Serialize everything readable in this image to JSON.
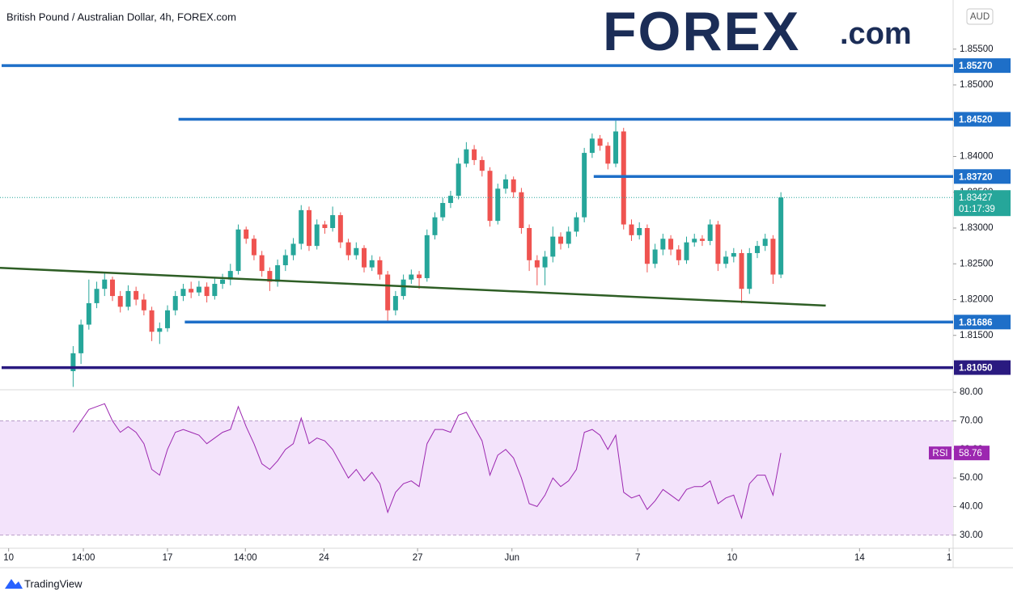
{
  "chart_data": [
    {
      "type": "candlestick",
      "title": "British Pound / Australian Dollar, 4h, FOREX.com",
      "currency": "AUD",
      "up_color": "#26a69a",
      "down_color": "#ef5350",
      "xlim": [
        -9.3,
        111.9
      ],
      "xticks": [
        {
          "value": -8.2,
          "label": "10"
        },
        {
          "value": 1.3,
          "label": "14:00"
        },
        {
          "value": 12,
          "label": "17"
        },
        {
          "value": 21.9,
          "label": "14:00"
        },
        {
          "value": 31.9,
          "label": "24"
        },
        {
          "value": 43.8,
          "label": "27"
        },
        {
          "value": 55.8,
          "label": "Jun"
        },
        {
          "value": 71.8,
          "label": "7"
        },
        {
          "value": 83.8,
          "label": "10"
        },
        {
          "value": 100,
          "label": "14"
        },
        {
          "value": 111.4,
          "label": "1"
        }
      ],
      "ylim": [
        1.8074,
        1.8613
      ],
      "yticks": [
        {
          "value": 1.815,
          "label": "1.81500"
        },
        {
          "value": 1.82,
          "label": "1.82000"
        },
        {
          "value": 1.825,
          "label": "1.82500"
        },
        {
          "value": 1.83,
          "label": "1.83000"
        },
        {
          "value": 1.835,
          "label": "1.83500"
        },
        {
          "value": 1.84,
          "label": "1.84000"
        },
        {
          "value": 1.845,
          "label": "1.84500"
        },
        {
          "value": 1.85,
          "label": "1.85000"
        },
        {
          "value": 1.855,
          "label": "1.85500"
        }
      ],
      "candles": [
        [
          1.81,
          1.8135,
          1.8078,
          1.8125
        ],
        [
          1.8125,
          1.8172,
          1.811,
          1.8165
        ],
        [
          1.8165,
          1.8228,
          1.8158,
          1.8195
        ],
        [
          1.8195,
          1.8225,
          1.8188,
          1.8215
        ],
        [
          1.8215,
          1.8238,
          1.8205,
          1.8228
        ],
        [
          1.8228,
          1.8232,
          1.8198,
          1.8205
        ],
        [
          1.8205,
          1.8212,
          1.8182,
          1.819
        ],
        [
          1.819,
          1.822,
          1.8185,
          1.8212
        ],
        [
          1.8212,
          1.8218,
          1.8192,
          1.82
        ],
        [
          1.82,
          1.8208,
          1.8178,
          1.8185
        ],
        [
          1.8185,
          1.819,
          1.8142,
          1.8155
        ],
        [
          1.8155,
          1.8168,
          1.8138,
          1.816
        ],
        [
          1.816,
          1.8192,
          1.8155,
          1.8185
        ],
        [
          1.8185,
          1.8212,
          1.8178,
          1.8205
        ],
        [
          1.8205,
          1.8222,
          1.8198,
          1.8215
        ],
        [
          1.8215,
          1.8225,
          1.8202,
          1.821
        ],
        [
          1.821,
          1.8226,
          1.8205,
          1.8218
        ],
        [
          1.8218,
          1.8224,
          1.8196,
          1.8205
        ],
        [
          1.8205,
          1.823,
          1.82,
          1.8222
        ],
        [
          1.8222,
          1.8236,
          1.8215,
          1.8228
        ],
        [
          1.8228,
          1.825,
          1.822,
          1.824
        ],
        [
          1.824,
          1.8305,
          1.8235,
          1.8298
        ],
        [
          1.8298,
          1.8302,
          1.8278,
          1.8285
        ],
        [
          1.8285,
          1.829,
          1.8255,
          1.8262
        ],
        [
          1.8262,
          1.8268,
          1.8232,
          1.824
        ],
        [
          1.824,
          1.8245,
          1.8212,
          1.8225
        ],
        [
          1.8225,
          1.8256,
          1.8218,
          1.8248
        ],
        [
          1.8248,
          1.827,
          1.824,
          1.8262
        ],
        [
          1.8262,
          1.8286,
          1.8255,
          1.8278
        ],
        [
          1.8278,
          1.8332,
          1.827,
          1.8325
        ],
        [
          1.8325,
          1.833,
          1.8268,
          1.8275
        ],
        [
          1.8275,
          1.8312,
          1.827,
          1.8305
        ],
        [
          1.8305,
          1.831,
          1.8292,
          1.83
        ],
        [
          1.83,
          1.833,
          1.8295,
          1.8318
        ],
        [
          1.8318,
          1.8322,
          1.8272,
          1.828
        ],
        [
          1.828,
          1.8285,
          1.8255,
          1.8262
        ],
        [
          1.8262,
          1.828,
          1.8256,
          1.8272
        ],
        [
          1.8272,
          1.8276,
          1.8238,
          1.8245
        ],
        [
          1.8245,
          1.8262,
          1.824,
          1.8255
        ],
        [
          1.8255,
          1.826,
          1.8228,
          1.8235
        ],
        [
          1.8235,
          1.824,
          1.817,
          1.8185
        ],
        [
          1.8185,
          1.8212,
          1.8178,
          1.8205
        ],
        [
          1.8205,
          1.8235,
          1.82,
          1.8228
        ],
        [
          1.8228,
          1.8242,
          1.8222,
          1.8235
        ],
        [
          1.8235,
          1.824,
          1.8215,
          1.823
        ],
        [
          1.823,
          1.8298,
          1.8225,
          1.829
        ],
        [
          1.829,
          1.8322,
          1.8284,
          1.8315
        ],
        [
          1.8315,
          1.8342,
          1.831,
          1.8335
        ],
        [
          1.8335,
          1.8352,
          1.8328,
          1.8345
        ],
        [
          1.8345,
          1.8398,
          1.834,
          1.839
        ],
        [
          1.839,
          1.842,
          1.8385,
          1.841
        ],
        [
          1.841,
          1.8416,
          1.8388,
          1.8395
        ],
        [
          1.8395,
          1.84,
          1.8372,
          1.838
        ],
        [
          1.838,
          1.8385,
          1.8302,
          1.831
        ],
        [
          1.831,
          1.8362,
          1.8305,
          1.8355
        ],
        [
          1.8355,
          1.8375,
          1.8348,
          1.8368
        ],
        [
          1.8368,
          1.8372,
          1.8342,
          1.835
        ],
        [
          1.835,
          1.8356,
          1.8292,
          1.83
        ],
        [
          1.83,
          1.8305,
          1.824,
          1.8255
        ],
        [
          1.8255,
          1.8262,
          1.822,
          1.8245
        ],
        [
          1.8245,
          1.8268,
          1.822,
          1.826
        ],
        [
          1.826,
          1.8302,
          1.8252,
          1.8288
        ],
        [
          1.8288,
          1.8294,
          1.827,
          1.8278
        ],
        [
          1.8278,
          1.8302,
          1.8272,
          1.8295
        ],
        [
          1.8295,
          1.8322,
          1.8288,
          1.8315
        ],
        [
          1.8315,
          1.8412,
          1.8308,
          1.8405
        ],
        [
          1.8405,
          1.8432,
          1.8398,
          1.8425
        ],
        [
          1.8425,
          1.843,
          1.8408,
          1.8415
        ],
        [
          1.8415,
          1.842,
          1.8382,
          1.839
        ],
        [
          1.839,
          1.845,
          1.8385,
          1.8435
        ],
        [
          1.8435,
          1.844,
          1.8298,
          1.8305
        ],
        [
          1.8305,
          1.8312,
          1.8282,
          1.829
        ],
        [
          1.829,
          1.8308,
          1.8284,
          1.83
        ],
        [
          1.83,
          1.8305,
          1.8238,
          1.825
        ],
        [
          1.825,
          1.8278,
          1.8244,
          1.827
        ],
        [
          1.827,
          1.8292,
          1.8262,
          1.8285
        ],
        [
          1.8285,
          1.829,
          1.8262,
          1.827
        ],
        [
          1.827,
          1.8276,
          1.8248,
          1.8255
        ],
        [
          1.8255,
          1.8288,
          1.825,
          1.828
        ],
        [
          1.828,
          1.8292,
          1.8274,
          1.8285
        ],
        [
          1.8285,
          1.829,
          1.8275,
          1.8282
        ],
        [
          1.8282,
          1.8312,
          1.8276,
          1.8305
        ],
        [
          1.8305,
          1.831,
          1.824,
          1.825
        ],
        [
          1.825,
          1.8268,
          1.8244,
          1.826
        ],
        [
          1.826,
          1.8272,
          1.8252,
          1.8265
        ],
        [
          1.8265,
          1.827,
          1.8195,
          1.8215
        ],
        [
          1.8215,
          1.8272,
          1.8208,
          1.8265
        ],
        [
          1.8265,
          1.8282,
          1.8258,
          1.8275
        ],
        [
          1.8275,
          1.8292,
          1.8268,
          1.8285
        ],
        [
          1.8285,
          1.829,
          1.8222,
          1.8235
        ],
        [
          1.8235,
          1.835,
          1.823,
          1.83427
        ]
      ],
      "countdown": "01:17:39",
      "levels": [
        {
          "value": 1.8527,
          "label": "1.85270",
          "color": "#1e6fc8"
        },
        {
          "value": 1.8452,
          "label": "1.84520",
          "color": "#1e6fc8",
          "x_start": 13.4
        },
        {
          "value": 1.8372,
          "label": "1.83720",
          "color": "#1e6fc8",
          "x_start": 66.2
        },
        {
          "value": 1.81686,
          "label": "1.81686",
          "color": "#1e6fc8",
          "x_start": 14.2
        },
        {
          "value": 1.8105,
          "label": "1.81050",
          "color": "#2a1a80"
        }
      ],
      "trendline": {
        "x": [
          -9.3,
          95.7
        ],
        "y": [
          1.82444,
          1.81916
        ],
        "color": "#2e5e25"
      }
    },
    {
      "type": "line",
      "name": "RSI",
      "color": "#9c27b0",
      "band": [
        30,
        70
      ],
      "band_color": "#f3e3fb",
      "ylim": [
        25.4,
        80.9
      ],
      "yticks": [
        {
          "value": 30,
          "label": "30.00"
        },
        {
          "value": 40,
          "label": "40.00"
        },
        {
          "value": 50,
          "label": "50.00"
        },
        {
          "value": 60,
          "label": "60.00"
        },
        {
          "value": 70,
          "label": "70.00"
        },
        {
          "value": 80,
          "label": "80.00"
        }
      ],
      "values": [
        66,
        70,
        74,
        75,
        76,
        70,
        66,
        68,
        66,
        62,
        53,
        51,
        60,
        66,
        67,
        66,
        65,
        62,
        64,
        66,
        67,
        75,
        68,
        62,
        55,
        53,
        56,
        60,
        62,
        71,
        62,
        64,
        63,
        60,
        55,
        50,
        53,
        49,
        52,
        48,
        38,
        45,
        48,
        49,
        47,
        62,
        67,
        67,
        66,
        72,
        73,
        68,
        63,
        51,
        58,
        60,
        57,
        50,
        41,
        40,
        44,
        50,
        47,
        49,
        53,
        66,
        67,
        65,
        60,
        65,
        45,
        43,
        44,
        39,
        42,
        46,
        44,
        42,
        46,
        47,
        47,
        49,
        41,
        43,
        44,
        36,
        48,
        51,
        51,
        44,
        58.76
      ]
    }
  ],
  "branding": {
    "logo": "FOREX",
    "logo_suffix": ".com",
    "footer": "TradingView"
  }
}
